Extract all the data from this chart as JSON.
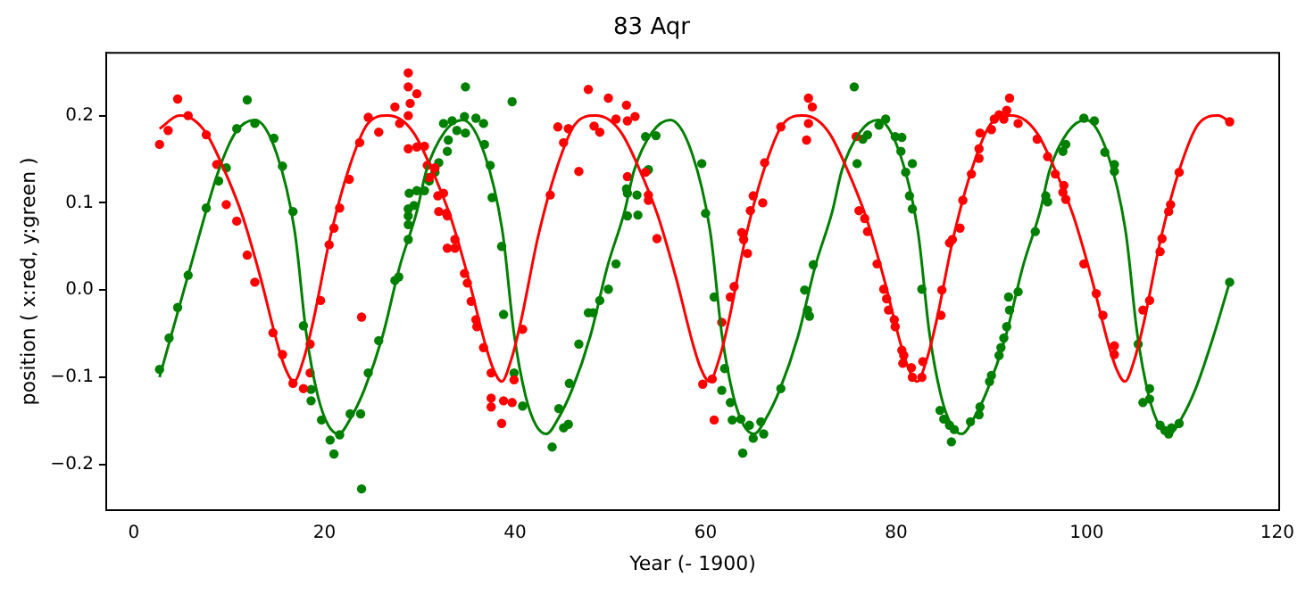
{
  "chart_data": {
    "type": "scatter",
    "title": "83 Aqr",
    "xlabel": "Year (- 1900)",
    "ylabel": "position ( x:red, y:green )",
    "xlim": [
      -2.9,
      120.2
    ],
    "ylim": [
      -0.252,
      0.272
    ],
    "xticks": [
      0,
      20,
      40,
      60,
      80,
      100,
      120
    ],
    "yticks": [
      {
        "value": -0.2,
        "label": "−0.2"
      },
      {
        "value": -0.1,
        "label": "−0.1"
      },
      {
        "value": 0,
        "label": "0.0"
      },
      0.1,
      0.2
    ],
    "grid": false,
    "legend": false,
    "marker": "circle",
    "series": [
      {
        "type": "scatter",
        "color": "#ff0000",
        "x": [
          2.7,
          3.6,
          4.6,
          5.7,
          7.6,
          8.7,
          9.7,
          10.8,
          11.9,
          12.7,
          14.6,
          15.6,
          16.7,
          17.8,
          18.5,
          18.5,
          19.6,
          20.5,
          21,
          21.6,
          22.6,
          23.7,
          23.9,
          24.6,
          25.7,
          27.4,
          28.8,
          28.8,
          29,
          29.7,
          28.8,
          27.9,
          28.8,
          29.7,
          30.5,
          30.8,
          31.6,
          31,
          31.9,
          32.5,
          32,
          32.8,
          32.9,
          33.7,
          32.9,
          33.7,
          34.7,
          35,
          35.4,
          35.9,
          36,
          36.7,
          37.5,
          37.5,
          37.5,
          38.8,
          39.7,
          38.6,
          39.9,
          40.8,
          43.7,
          44.5,
          45.1,
          45.6,
          46.7,
          47.7,
          48.3,
          48.9,
          49.8,
          50.6,
          51.7,
          51.8,
          52.6,
          51.8,
          53.7,
          54,
          54,
          54.9,
          59.7,
          60.9,
          60.7,
          61.7,
          62.6,
          63,
          63.8,
          64,
          64.4,
          64.7,
          65,
          66,
          66.2,
          67.9,
          70.6,
          70.8,
          70.8,
          71.2,
          75.8,
          76.1,
          76.7,
          77,
          78,
          78.7,
          79,
          79.2,
          79.8,
          79.9,
          80.6,
          80.8,
          80.7,
          81.6,
          81.7,
          82.7,
          82.8,
          84.7,
          84.8,
          85.6,
          85.9,
          86.7,
          87,
          87.9,
          88.7,
          88.8,
          90.3,
          88.7,
          90,
          90.8,
          91.3,
          91.6,
          91.9,
          92.8,
          94.8,
          95.9,
          96.7,
          97.6,
          97.5,
          97.8,
          99.7,
          101,
          101.7,
          102.9,
          102.9,
          105.9,
          106.6,
          107.7,
          107.9,
          108.6,
          108.8,
          109.7,
          115
        ],
        "values": [
          0.167,
          0.183,
          0.219,
          0.2,
          0.178,
          0.144,
          0.098,
          0.079,
          0.04,
          0.009,
          -0.049,
          -0.074,
          -0.107,
          -0.113,
          -0.062,
          -0.095,
          -0.012,
          0.052,
          0.071,
          0.094,
          0.127,
          0.169,
          -0.031,
          0.198,
          0.181,
          0.21,
          0.249,
          0.233,
          0.214,
          0.225,
          0.2,
          0.191,
          0.162,
          0.164,
          0.165,
          0.143,
          0.14,
          0.129,
          0.108,
          0.111,
          0.09,
          0.088,
          0.085,
          0.058,
          0.048,
          0.048,
          0.019,
          0.008,
          -0.013,
          -0.034,
          -0.042,
          -0.066,
          -0.095,
          -0.124,
          -0.134,
          -0.127,
          -0.129,
          -0.153,
          -0.103,
          -0.045,
          0.109,
          0.187,
          0.169,
          0.185,
          0.136,
          0.23,
          0.188,
          0.181,
          0.22,
          0.196,
          0.212,
          0.194,
          0.199,
          0.13,
          0.135,
          0.109,
          0.103,
          0.059,
          -0.108,
          -0.149,
          -0.102,
          -0.037,
          -0.008,
          0.004,
          0.066,
          0.058,
          0.042,
          0.091,
          0.108,
          0.1,
          0.146,
          0.187,
          0.172,
          0.191,
          0.22,
          0.21,
          0.176,
          0.091,
          0.082,
          0.067,
          0.03,
          0.001,
          -0.01,
          -0.023,
          -0.034,
          -0.042,
          -0.069,
          -0.075,
          -0.084,
          -0.089,
          -0.1,
          -0.1,
          -0.082,
          -0.029,
          0,
          0.054,
          0.058,
          0.071,
          0.103,
          0.133,
          0.151,
          0.18,
          0.196,
          0.162,
          0.184,
          0.201,
          0.196,
          0.206,
          0.22,
          0.191,
          0.173,
          0.153,
          0.133,
          0.12,
          0.112,
          0.104,
          0.03,
          -0.004,
          -0.029,
          -0.064,
          -0.074,
          -0.023,
          -0.012,
          0.044,
          0.059,
          0.09,
          0.098,
          0.135,
          0.193
        ]
      },
      {
        "type": "scatter",
        "color": "#008000",
        "x": [
          2.7,
          3.7,
          4.6,
          5.7,
          7.6,
          8.9,
          9.7,
          10.8,
          11.9,
          12.7,
          14.7,
          15.6,
          16.7,
          17.8,
          18.6,
          18.6,
          19.7,
          20.6,
          21,
          21.6,
          22.7,
          23.8,
          23.9,
          24.6,
          25.7,
          27.4,
          27.8,
          28.8,
          28.8,
          28.8,
          28.8,
          29.4,
          28.9,
          29.7,
          30.5,
          31,
          31.6,
          32,
          32.9,
          33,
          32.5,
          33.4,
          34.7,
          34.8,
          33.9,
          34.8,
          35.9,
          36.7,
          36.8,
          37.4,
          37.6,
          38.6,
          38.8,
          39.7,
          39.9,
          40.8,
          43.9,
          44.6,
          45.1,
          45.6,
          45.7,
          46.7,
          47.7,
          48.2,
          48.9,
          49.8,
          50.6,
          51.7,
          51.8,
          51.8,
          52.8,
          52.9,
          53.7,
          54,
          54.8,
          59.6,
          60,
          60.9,
          62,
          61.7,
          62.6,
          62.8,
          63.7,
          63.9,
          64.6,
          65,
          65.8,
          66.1,
          67.9,
          70.4,
          70.7,
          70.9,
          71.3,
          75.6,
          75.9,
          76.5,
          77,
          78.2,
          78.9,
          79.9,
          80.6,
          80.5,
          81,
          81.7,
          81.4,
          81.7,
          82.7,
          84.6,
          85,
          85.6,
          85.8,
          86.1,
          87.8,
          88.7,
          88.8,
          89.8,
          90,
          90.8,
          91,
          91.3,
          91.6,
          91.9,
          91.8,
          92.8,
          94.6,
          95.7,
          95.9,
          97.5,
          97.8,
          99.7,
          100.8,
          101.9,
          102.9,
          102.9,
          105.4,
          105.9,
          106.6,
          106.6,
          107.7,
          108.2,
          108.6,
          108.9,
          109.7,
          115
        ],
        "values": [
          -0.091,
          -0.055,
          -0.02,
          0.017,
          0.094,
          0.125,
          0.14,
          0.185,
          0.218,
          0.191,
          0.174,
          0.142,
          0.09,
          -0.041,
          -0.114,
          -0.127,
          -0.149,
          -0.172,
          -0.188,
          -0.166,
          -0.142,
          -0.142,
          -0.228,
          -0.095,
          -0.058,
          0.011,
          0.015,
          0.058,
          0.075,
          0.085,
          0.093,
          0.097,
          0.111,
          0.114,
          0.114,
          0.125,
          0.135,
          0.146,
          0.159,
          0.172,
          0.191,
          0.194,
          0.199,
          0.233,
          0.183,
          0.18,
          0.197,
          0.191,
          0.167,
          0.143,
          0.106,
          0.05,
          -0.028,
          0.216,
          -0.095,
          -0.133,
          -0.18,
          -0.136,
          -0.158,
          -0.154,
          -0.107,
          -0.062,
          -0.026,
          -0.026,
          -0.012,
          0.001,
          0.03,
          0.116,
          0.111,
          0.085,
          0.109,
          0.086,
          0.176,
          0.138,
          0.177,
          0.145,
          0.088,
          -0.008,
          -0.09,
          -0.115,
          -0.129,
          -0.149,
          -0.148,
          -0.187,
          -0.155,
          -0.17,
          -0.151,
          -0.165,
          -0.113,
          0,
          -0.023,
          -0.03,
          0.029,
          0.233,
          0.145,
          0.173,
          0.178,
          0.189,
          0.196,
          0.176,
          0.175,
          0.159,
          0.135,
          0.145,
          0.108,
          0.093,
          0.001,
          -0.138,
          -0.148,
          -0.155,
          -0.174,
          -0.16,
          -0.151,
          -0.143,
          -0.134,
          -0.105,
          -0.098,
          -0.075,
          -0.066,
          -0.055,
          -0.042,
          -0.023,
          -0.008,
          -0.002,
          0.067,
          0.108,
          0.101,
          0.159,
          0.167,
          0.197,
          0.194,
          0.158,
          0.144,
          0.136,
          -0.062,
          -0.129,
          -0.113,
          -0.125,
          -0.155,
          -0.161,
          -0.165,
          -0.158,
          -0.153,
          0.009
        ]
      },
      {
        "type": "line",
        "color": "#ff0000",
        "marker": "none",
        "x": [
          2.7,
          4.8,
          6.3,
          7.7,
          9.4,
          11.4,
          13.3,
          15.1,
          15.9,
          16.8,
          17.8,
          18.8,
          20.6,
          22.5,
          24.5,
          26.6,
          28.1,
          29.5,
          31.2,
          33.2,
          35.1,
          36.9,
          37.7,
          38.6,
          39.6,
          40.6,
          42.4,
          44.3,
          46.3,
          48.4,
          49.9,
          51.3,
          53,
          55,
          56.9,
          58.7,
          59.5,
          60.4,
          61.4,
          62.4,
          64.2,
          66.1,
          68.1,
          70.2,
          71.7,
          73.1,
          74.8,
          76.8,
          78.7,
          80.5,
          81.3,
          82.2,
          83.2,
          84.2,
          86,
          87.9,
          89.9,
          92,
          93.5,
          94.9,
          96.6,
          98.6,
          100.5,
          102.3,
          103.1,
          104,
          105,
          106,
          107.8,
          109.7,
          111.7,
          113.8,
          115
        ],
        "values": [
          0.185,
          0.2,
          0.195,
          0.178,
          0.14,
          0.085,
          0.014,
          -0.063,
          -0.09,
          -0.105,
          -0.08,
          -0.037,
          0.06,
          0.137,
          0.19,
          0.2,
          0.195,
          0.178,
          0.14,
          0.085,
          0.014,
          -0.063,
          -0.09,
          -0.105,
          -0.08,
          -0.037,
          0.06,
          0.137,
          0.19,
          0.2,
          0.195,
          0.178,
          0.14,
          0.085,
          0.014,
          -0.063,
          -0.09,
          -0.105,
          -0.08,
          -0.037,
          0.06,
          0.137,
          0.19,
          0.2,
          0.195,
          0.178,
          0.14,
          0.085,
          0.014,
          -0.063,
          -0.09,
          -0.105,
          -0.08,
          -0.037,
          0.06,
          0.137,
          0.19,
          0.2,
          0.195,
          0.178,
          0.14,
          0.085,
          0.014,
          -0.063,
          -0.09,
          -0.105,
          -0.08,
          -0.037,
          0.06,
          0.137,
          0.19,
          0.2,
          0.193
        ]
      },
      {
        "type": "line",
        "color": "#008000",
        "marker": "none",
        "x": [
          2.7,
          5.8,
          8.9,
          10.7,
          12.7,
          15,
          16.9,
          18.1,
          19.3,
          20.4,
          21.5,
          22.7,
          24.2,
          26.1,
          27.9,
          29.7,
          30.7,
          32.6,
          34.5,
          36.8,
          38.7,
          39.9,
          41.1,
          42.2,
          43.3,
          44.5,
          46,
          47.9,
          49.7,
          51.5,
          52.5,
          54.4,
          56.3,
          58.6,
          60.5,
          61.7,
          62.9,
          64,
          65.1,
          66.3,
          67.8,
          69.7,
          71.5,
          73.3,
          74.3,
          76.2,
          78.1,
          80.4,
          82.3,
          83.5,
          84.7,
          85.8,
          86.9,
          88.1,
          89.6,
          91.5,
          93.3,
          95.1,
          96.1,
          98,
          99.9,
          102.2,
          104.1,
          105.3,
          106.5,
          107.6,
          108.7,
          109.9,
          111.4,
          113.3,
          115
        ],
        "values": [
          -0.1,
          0.021,
          0.137,
          0.181,
          0.195,
          0.156,
          0.066,
          -0.05,
          -0.121,
          -0.155,
          -0.165,
          -0.148,
          -0.114,
          -0.053,
          0.027,
          0.09,
          0.137,
          0.181,
          0.195,
          0.156,
          0.066,
          -0.05,
          -0.121,
          -0.155,
          -0.165,
          -0.148,
          -0.114,
          -0.053,
          0.027,
          0.09,
          0.137,
          0.181,
          0.195,
          0.156,
          0.066,
          -0.05,
          -0.121,
          -0.155,
          -0.165,
          -0.148,
          -0.114,
          -0.053,
          0.027,
          0.09,
          0.137,
          0.181,
          0.195,
          0.156,
          0.066,
          -0.05,
          -0.121,
          -0.155,
          -0.165,
          -0.148,
          -0.114,
          -0.053,
          0.027,
          0.09,
          0.137,
          0.181,
          0.195,
          0.156,
          0.066,
          -0.05,
          -0.121,
          -0.155,
          -0.165,
          -0.148,
          -0.114,
          -0.053,
          0.009
        ]
      }
    ]
  }
}
